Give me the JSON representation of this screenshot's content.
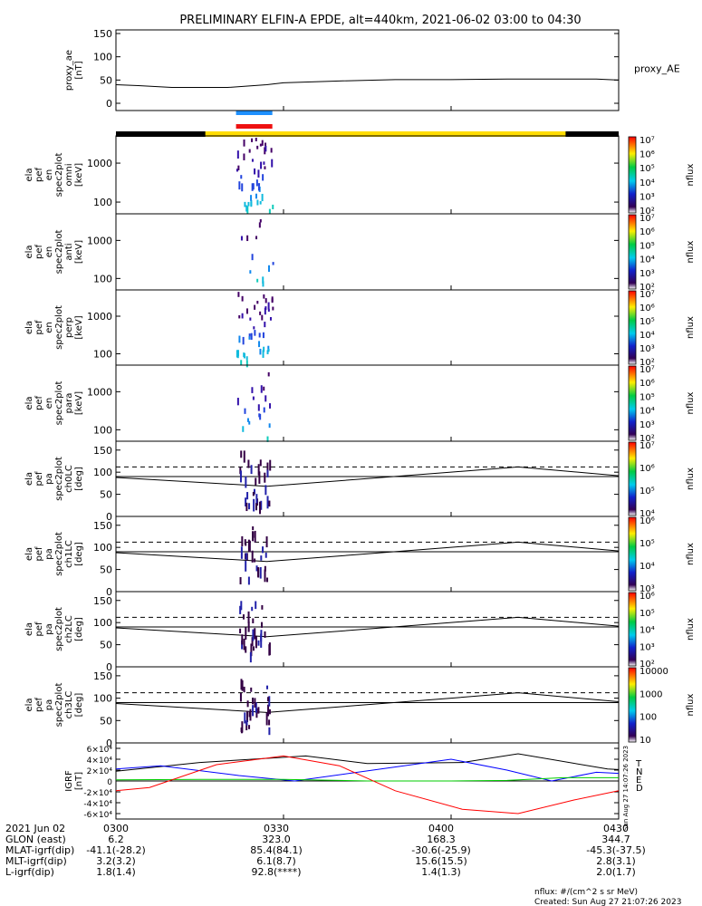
{
  "title": "PRELIMINARY ELFIN-A EPDE, alt=440km, 2021-06-02 03:00 to 04:30",
  "panels": [
    {
      "id": "proxy_ae",
      "ylabel": [
        "proxy_ae",
        "[nT]"
      ],
      "side_label": "proxy_AE",
      "yticks": [
        "0",
        "50",
        "100",
        "150"
      ]
    },
    {
      "id": "omni",
      "ylabel": [
        "ela",
        "pef",
        "en",
        "spec2plot",
        "omni",
        "[keV]"
      ],
      "yticks": [
        "100",
        "1000"
      ]
    },
    {
      "id": "anti",
      "ylabel": [
        "ela",
        "pef",
        "en",
        "spec2plot",
        "anti",
        "[keV]"
      ],
      "yticks": [
        "100",
        "1000"
      ]
    },
    {
      "id": "perp",
      "ylabel": [
        "ela",
        "pef",
        "en",
        "spec2plot",
        "perp",
        "[keV]"
      ],
      "yticks": [
        "100",
        "1000"
      ]
    },
    {
      "id": "para",
      "ylabel": [
        "ela",
        "pef",
        "en",
        "spec2plot",
        "para",
        "[keV]"
      ],
      "yticks": [
        "100",
        "1000"
      ]
    },
    {
      "id": "ch0LC",
      "ylabel": [
        "ela",
        "pef",
        "pa",
        "spec2plot",
        "ch0LC",
        "[deg]"
      ],
      "yticks": [
        "0",
        "50",
        "100",
        "150"
      ]
    },
    {
      "id": "ch1LC",
      "ylabel": [
        "ela",
        "pef",
        "pa",
        "spec2plot",
        "ch1LC",
        "[deg]"
      ],
      "yticks": [
        "0",
        "50",
        "100",
        "150"
      ]
    },
    {
      "id": "ch2LC",
      "ylabel": [
        "ela",
        "pef",
        "pa",
        "spec2plot",
        "ch2LC",
        "[deg]"
      ],
      "yticks": [
        "0",
        "50",
        "100",
        "150"
      ]
    },
    {
      "id": "ch3LC",
      "ylabel": [
        "ela",
        "pef",
        "pa",
        "spec2plot",
        "ch3LC",
        "[deg]"
      ],
      "yticks": [
        "0",
        "50",
        "100",
        "150"
      ]
    },
    {
      "id": "igrf",
      "ylabel": [
        "IGRF",
        "[nT]"
      ],
      "yticks": [
        "-6×10⁴",
        "-4×10⁴",
        "-2×10⁴",
        "0",
        "2×10⁴",
        "4×10⁴",
        "6×10⁴"
      ]
    }
  ],
  "colorbars": [
    {
      "label": "nflux",
      "ticks": [
        "10²",
        "10³",
        "10⁴",
        "10⁵",
        "10⁶",
        "10⁷"
      ]
    },
    {
      "label": "nflux",
      "ticks": [
        "10²",
        "10³",
        "10⁴",
        "10⁵",
        "10⁶",
        "10⁷"
      ]
    },
    {
      "label": "nflux",
      "ticks": [
        "10²",
        "10³",
        "10⁴",
        "10⁵",
        "10⁶",
        "10⁷"
      ]
    },
    {
      "label": "nflux",
      "ticks": [
        "10²",
        "10³",
        "10⁴",
        "10⁵",
        "10⁶",
        "10⁷"
      ]
    },
    {
      "label": "nflux",
      "ticks": [
        "10⁴",
        "10⁵",
        "10⁶",
        "10⁷"
      ]
    },
    {
      "label": "nflux",
      "ticks": [
        "10³",
        "10⁴",
        "10⁵",
        "10⁶"
      ]
    },
    {
      "label": "nflux",
      "ticks": [
        "10²",
        "10³",
        "10⁴",
        "10⁵",
        "10⁶"
      ]
    },
    {
      "label": "nflux",
      "ticks": [
        "10",
        "100",
        "1000",
        "10000"
      ]
    }
  ],
  "igrf_legend": [
    {
      "label": "T",
      "color": "#000000"
    },
    {
      "label": "N",
      "color": "#0000ff"
    },
    {
      "label": "E",
      "color": "#00cc00"
    },
    {
      "label": "D",
      "color": "#ff0000"
    }
  ],
  "timestamp_vertical": "Sun Aug 27 14:07:26 2023",
  "ephemeris": {
    "rows": [
      {
        "label": "2021 Jun 02",
        "values": [
          "0300",
          "0330",
          "0400",
          "0430"
        ]
      },
      {
        "label": "GLON (east)",
        "values": [
          "6.2",
          "323.0",
          "168.3",
          "344.7"
        ]
      },
      {
        "label": "MLAT-igrf(dip)",
        "values": [
          "-41.1(-28.2)",
          "85.4(84.1)",
          "-30.6(-25.9)",
          "-45.3(-37.5)"
        ]
      },
      {
        "label": "MLT-igrf(dip)",
        "values": [
          "3.2(3.2)",
          "6.1(8.7)",
          "15.6(15.5)",
          "2.8(3.1)"
        ]
      },
      {
        "label": "L-igrf(dip)",
        "values": [
          "1.8(1.4)",
          "92.8(****)",
          "1.4(1.3)",
          "2.0(1.7)"
        ]
      }
    ]
  },
  "footer": {
    "units": "nflux: #/(cm^2 s sr MeV)",
    "created": "Created: Sun Aug 27 21:07:26 2023"
  },
  "colors": {
    "science_zone_bar": "#ffdd00",
    "bar_black": "#000000",
    "marker_blue": "#1e90ff",
    "marker_red": "#ee1111"
  },
  "chart_data": {
    "type": "line",
    "x_range_minutes": [
      0,
      90
    ],
    "x_ticks": [
      "0300",
      "0330",
      "0400",
      "0430"
    ],
    "proxy_ae": {
      "ylim": [
        0,
        150
      ],
      "x": [
        0,
        4,
        10,
        20,
        27,
        30,
        35,
        40,
        50,
        60,
        70,
        80,
        86,
        90
      ],
      "y": [
        40,
        38,
        34,
        34,
        40,
        44,
        46,
        48,
        51,
        51,
        52,
        52,
        52,
        50
      ]
    },
    "science_zone_minutes": [
      16,
      80.5
    ],
    "burst_markers_minutes": [
      21.5,
      28
    ],
    "energy_ylim_log": [
      50,
      5000
    ],
    "pitch_ylim": [
      0,
      170
    ],
    "loss_cone_deg": {
      "x": [
        0,
        27,
        60,
        72,
        90
      ],
      "y": [
        88,
        68,
        100,
        112,
        92
      ]
    },
    "anti_loss_cone_dashed_deg": 112,
    "igrf": {
      "ylim": [
        -70000,
        70000
      ],
      "T": {
        "x": [
          0,
          15,
          34,
          45,
          62,
          72,
          88,
          90
        ],
        "y": [
          18000,
          34000,
          46000,
          32000,
          34000,
          50000,
          22000,
          21000
        ]
      },
      "N": {
        "x": [
          0,
          8,
          22,
          32,
          46,
          60,
          70,
          78,
          86,
          90
        ],
        "y": [
          22000,
          28000,
          10000,
          0,
          20000,
          40000,
          20000,
          0,
          16000,
          14000
        ]
      },
      "E": {
        "x": [
          0,
          15,
          30,
          45,
          60,
          70,
          80,
          90
        ],
        "y": [
          2000,
          3000,
          3000,
          0,
          0,
          1000,
          6000,
          6000
        ]
      },
      "D": {
        "x": [
          0,
          6,
          18,
          30,
          40,
          50,
          62,
          72,
          82,
          90
        ],
        "y": [
          -18000,
          -12000,
          30000,
          46000,
          28000,
          -18000,
          -52000,
          -60000,
          -35000,
          -18000
        ]
      }
    }
  }
}
